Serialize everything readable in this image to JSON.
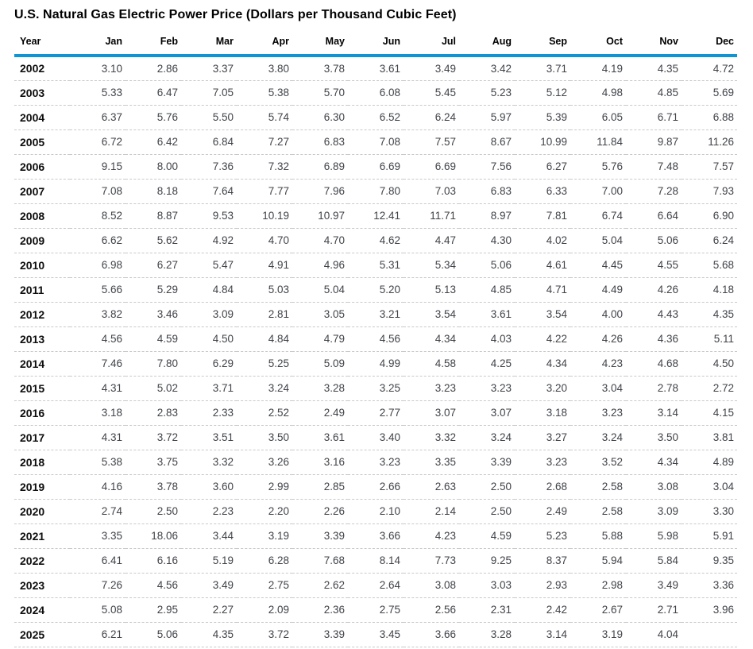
{
  "title": "U.S. Natural Gas Electric Power Price (Dollars per Thousand Cubic Feet)",
  "colors": {
    "header_rule": "#0d96d3",
    "row_separator": "#c9c9c9",
    "header_text": "#000000",
    "value_text": "#404349"
  },
  "chart_data": {
    "type": "table",
    "title": "U.S. Natural Gas Electric Power Price (Dollars per Thousand Cubic Feet)",
    "columns": [
      "Year",
      "Jan",
      "Feb",
      "Mar",
      "Apr",
      "May",
      "Jun",
      "Jul",
      "Aug",
      "Sep",
      "Oct",
      "Nov",
      "Dec"
    ],
    "rows": [
      {
        "year": "2002",
        "values": [
          "3.10",
          "2.86",
          "3.37",
          "3.80",
          "3.78",
          "3.61",
          "3.49",
          "3.42",
          "3.71",
          "4.19",
          "4.35",
          "4.72"
        ]
      },
      {
        "year": "2003",
        "values": [
          "5.33",
          "6.47",
          "7.05",
          "5.38",
          "5.70",
          "6.08",
          "5.45",
          "5.23",
          "5.12",
          "4.98",
          "4.85",
          "5.69"
        ]
      },
      {
        "year": "2004",
        "values": [
          "6.37",
          "5.76",
          "5.50",
          "5.74",
          "6.30",
          "6.52",
          "6.24",
          "5.97",
          "5.39",
          "6.05",
          "6.71",
          "6.88"
        ]
      },
      {
        "year": "2005",
        "values": [
          "6.72",
          "6.42",
          "6.84",
          "7.27",
          "6.83",
          "7.08",
          "7.57",
          "8.67",
          "10.99",
          "11.84",
          "9.87",
          "11.26"
        ]
      },
      {
        "year": "2006",
        "values": [
          "9.15",
          "8.00",
          "7.36",
          "7.32",
          "6.89",
          "6.69",
          "6.69",
          "7.56",
          "6.27",
          "5.76",
          "7.48",
          "7.57"
        ]
      },
      {
        "year": "2007",
        "values": [
          "7.08",
          "8.18",
          "7.64",
          "7.77",
          "7.96",
          "7.80",
          "7.03",
          "6.83",
          "6.33",
          "7.00",
          "7.28",
          "7.93"
        ]
      },
      {
        "year": "2008",
        "values": [
          "8.52",
          "8.87",
          "9.53",
          "10.19",
          "10.97",
          "12.41",
          "11.71",
          "8.97",
          "7.81",
          "6.74",
          "6.64",
          "6.90"
        ]
      },
      {
        "year": "2009",
        "values": [
          "6.62",
          "5.62",
          "4.92",
          "4.70",
          "4.70",
          "4.62",
          "4.47",
          "4.30",
          "4.02",
          "5.04",
          "5.06",
          "6.24"
        ]
      },
      {
        "year": "2010",
        "values": [
          "6.98",
          "6.27",
          "5.47",
          "4.91",
          "4.96",
          "5.31",
          "5.34",
          "5.06",
          "4.61",
          "4.45",
          "4.55",
          "5.68"
        ]
      },
      {
        "year": "2011",
        "values": [
          "5.66",
          "5.29",
          "4.84",
          "5.03",
          "5.04",
          "5.20",
          "5.13",
          "4.85",
          "4.71",
          "4.49",
          "4.26",
          "4.18"
        ]
      },
      {
        "year": "2012",
        "values": [
          "3.82",
          "3.46",
          "3.09",
          "2.81",
          "3.05",
          "3.21",
          "3.54",
          "3.61",
          "3.54",
          "4.00",
          "4.43",
          "4.35"
        ]
      },
      {
        "year": "2013",
        "values": [
          "4.56",
          "4.59",
          "4.50",
          "4.84",
          "4.79",
          "4.56",
          "4.34",
          "4.03",
          "4.22",
          "4.26",
          "4.36",
          "5.11"
        ]
      },
      {
        "year": "2014",
        "values": [
          "7.46",
          "7.80",
          "6.29",
          "5.25",
          "5.09",
          "4.99",
          "4.58",
          "4.25",
          "4.34",
          "4.23",
          "4.68",
          "4.50"
        ]
      },
      {
        "year": "2015",
        "values": [
          "4.31",
          "5.02",
          "3.71",
          "3.24",
          "3.28",
          "3.25",
          "3.23",
          "3.23",
          "3.20",
          "3.04",
          "2.78",
          "2.72"
        ]
      },
      {
        "year": "2016",
        "values": [
          "3.18",
          "2.83",
          "2.33",
          "2.52",
          "2.49",
          "2.77",
          "3.07",
          "3.07",
          "3.18",
          "3.23",
          "3.14",
          "4.15"
        ]
      },
      {
        "year": "2017",
        "values": [
          "4.31",
          "3.72",
          "3.51",
          "3.50",
          "3.61",
          "3.40",
          "3.32",
          "3.24",
          "3.27",
          "3.24",
          "3.50",
          "3.81"
        ]
      },
      {
        "year": "2018",
        "values": [
          "5.38",
          "3.75",
          "3.32",
          "3.26",
          "3.16",
          "3.23",
          "3.35",
          "3.39",
          "3.23",
          "3.52",
          "4.34",
          "4.89"
        ]
      },
      {
        "year": "2019",
        "values": [
          "4.16",
          "3.78",
          "3.60",
          "2.99",
          "2.85",
          "2.66",
          "2.63",
          "2.50",
          "2.68",
          "2.58",
          "3.08",
          "3.04"
        ]
      },
      {
        "year": "2020",
        "values": [
          "2.74",
          "2.50",
          "2.23",
          "2.20",
          "2.26",
          "2.10",
          "2.14",
          "2.50",
          "2.49",
          "2.58",
          "3.09",
          "3.30"
        ]
      },
      {
        "year": "2021",
        "values": [
          "3.35",
          "18.06",
          "3.44",
          "3.19",
          "3.39",
          "3.66",
          "4.23",
          "4.59",
          "5.23",
          "5.88",
          "5.98",
          "5.91"
        ]
      },
      {
        "year": "2022",
        "values": [
          "6.41",
          "6.16",
          "5.19",
          "6.28",
          "7.68",
          "8.14",
          "7.73",
          "9.25",
          "8.37",
          "5.94",
          "5.84",
          "9.35"
        ]
      },
      {
        "year": "2023",
        "values": [
          "7.26",
          "4.56",
          "3.49",
          "2.75",
          "2.62",
          "2.64",
          "3.08",
          "3.03",
          "2.93",
          "2.98",
          "3.49",
          "3.36"
        ]
      },
      {
        "year": "2024",
        "values": [
          "5.08",
          "2.95",
          "2.27",
          "2.09",
          "2.36",
          "2.75",
          "2.56",
          "2.31",
          "2.42",
          "2.67",
          "2.71",
          "3.96"
        ]
      },
      {
        "year": "2025",
        "values": [
          "6.21",
          "5.06",
          "4.35",
          "3.72",
          "3.39",
          "3.45",
          "3.66",
          "3.28",
          "3.14",
          "3.19",
          "4.04",
          ""
        ]
      }
    ]
  }
}
